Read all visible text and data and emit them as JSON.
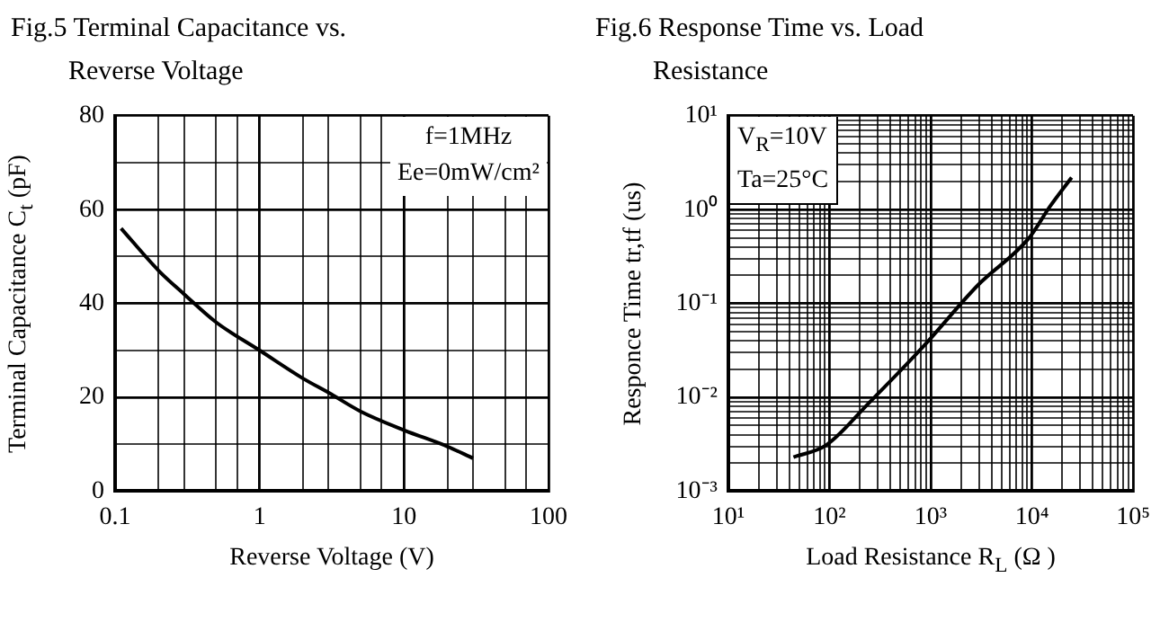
{
  "chart_data": [
    {
      "type": "line",
      "title": "Fig.5 Terminal Capacitance vs. Reverse Voltage",
      "xlabel": "Reverse Voltage (V)",
      "ylabel": "Terminal Capacitance C$_{t}$ (pF)",
      "annotations": [
        "f=1MHz",
        "Ee=0mW/cm²"
      ],
      "x": [
        0.11,
        0.2,
        0.3,
        0.5,
        1,
        2,
        3,
        5,
        10,
        20,
        30
      ],
      "series": [
        {
          "color": "#000000",
          "values": [
            56,
            47,
            42,
            36,
            30,
            24,
            21,
            17,
            13,
            9.5,
            7
          ]
        }
      ],
      "log": "x",
      "xlim": [
        0.1,
        100
      ],
      "xticks": [
        0.1,
        {
          "value": 0.2,
          "label": null
        },
        {
          "value": 0.3,
          "label": null
        },
        {
          "value": 0.5,
          "label": null
        },
        {
          "value": 0.7,
          "label": null
        },
        1,
        {
          "value": 2,
          "label": null
        },
        {
          "value": 3,
          "label": null
        },
        {
          "value": 5,
          "label": null
        },
        {
          "value": 7,
          "label": null
        },
        10,
        {
          "value": 20,
          "label": null
        },
        {
          "value": 30,
          "label": null
        },
        {
          "value": 50,
          "label": null
        },
        {
          "value": 70,
          "label": null
        },
        100
      ],
      "ylim": [
        0,
        80
      ],
      "yticks": [
        0,
        {
          "value": 10,
          "label": null
        },
        20,
        {
          "value": 30,
          "label": null
        },
        40,
        {
          "value": 50,
          "label": null
        },
        60,
        {
          "value": 70,
          "label": null
        },
        80
      ],
      "grid": true,
      "legend": false,
      "line_style": "solid"
    },
    {
      "type": "line",
      "title": "Fig.6 Response Time vs. Load Resistance",
      "xlabel": "Load Resistance R$_{L}$ (Ω )",
      "ylabel": "Responce Time tr,tf (us)",
      "annotations": [
        "V$_{R}$=10V",
        "Ta=25°C"
      ],
      "x": [
        44,
        93,
        245,
        850,
        2900,
        9400,
        15000,
        24700
      ],
      "series": [
        {
          "color": "#000000",
          "values": [
            0.0023,
            0.0031,
            0.0087,
            0.035,
            0.155,
            0.5,
            1.07,
            2.2
          ]
        }
      ],
      "log": "xy",
      "xlim": [
        10,
        100000
      ],
      "xticks": [
        {
          "value": 10,
          "label": "10¹"
        },
        {
          "value": 20,
          "label": null
        },
        {
          "value": 30,
          "label": null
        },
        {
          "value": 40,
          "label": null
        },
        {
          "value": 50,
          "label": null
        },
        {
          "value": 60,
          "label": null
        },
        {
          "value": 70,
          "label": null
        },
        {
          "value": 80,
          "label": null
        },
        {
          "value": 90,
          "label": null
        },
        {
          "value": 100,
          "label": "10²"
        },
        {
          "value": 200,
          "label": null
        },
        {
          "value": 300,
          "label": null
        },
        {
          "value": 400,
          "label": null
        },
        {
          "value": 500,
          "label": null
        },
        {
          "value": 600,
          "label": null
        },
        {
          "value": 700,
          "label": null
        },
        {
          "value": 800,
          "label": null
        },
        {
          "value": 900,
          "label": null
        },
        {
          "value": 1000,
          "label": "10³"
        },
        {
          "value": 2000,
          "label": null
        },
        {
          "value": 3000,
          "label": null
        },
        {
          "value": 4000,
          "label": null
        },
        {
          "value": 5000,
          "label": null
        },
        {
          "value": 6000,
          "label": null
        },
        {
          "value": 7000,
          "label": null
        },
        {
          "value": 8000,
          "label": null
        },
        {
          "value": 9000,
          "label": null
        },
        {
          "value": 10000,
          "label": "10⁴"
        },
        {
          "value": 20000,
          "label": null
        },
        {
          "value": 30000,
          "label": null
        },
        {
          "value": 40000,
          "label": null
        },
        {
          "value": 50000,
          "label": null
        },
        {
          "value": 60000,
          "label": null
        },
        {
          "value": 70000,
          "label": null
        },
        {
          "value": 80000,
          "label": null
        },
        {
          "value": 90000,
          "label": null
        },
        {
          "value": 100000,
          "label": "10⁵"
        }
      ],
      "ylim": [
        0.001,
        10
      ],
      "yticks": [
        {
          "value": 0.001,
          "label": "10⁻³"
        },
        {
          "value": 0.002,
          "label": null
        },
        {
          "value": 0.003,
          "label": null
        },
        {
          "value": 0.004,
          "label": null
        },
        {
          "value": 0.005,
          "label": null
        },
        {
          "value": 0.006,
          "label": null
        },
        {
          "value": 0.007,
          "label": null
        },
        {
          "value": 0.008,
          "label": null
        },
        {
          "value": 0.009,
          "label": null
        },
        {
          "value": 0.01,
          "label": "10⁻²"
        },
        {
          "value": 0.02,
          "label": null
        },
        {
          "value": 0.03,
          "label": null
        },
        {
          "value": 0.04,
          "label": null
        },
        {
          "value": 0.05,
          "label": null
        },
        {
          "value": 0.06,
          "label": null
        },
        {
          "value": 0.07,
          "label": null
        },
        {
          "value": 0.08,
          "label": null
        },
        {
          "value": 0.09,
          "label": null
        },
        {
          "value": 0.1,
          "label": "10⁻¹"
        },
        {
          "value": 0.2,
          "label": null
        },
        {
          "value": 0.3,
          "label": null
        },
        {
          "value": 0.4,
          "label": null
        },
        {
          "value": 0.5,
          "label": null
        },
        {
          "value": 0.6,
          "label": null
        },
        {
          "value": 0.7,
          "label": null
        },
        {
          "value": 0.8,
          "label": null
        },
        {
          "value": 0.9,
          "label": null
        },
        {
          "value": 1,
          "label": "10⁰"
        },
        {
          "value": 2,
          "label": null
        },
        {
          "value": 3,
          "label": null
        },
        {
          "value": 4,
          "label": null
        },
        {
          "value": 5,
          "label": null
        },
        {
          "value": 6,
          "label": null
        },
        {
          "value": 7,
          "label": null
        },
        {
          "value": 8,
          "label": null
        },
        {
          "value": 9,
          "label": null
        },
        {
          "value": 10,
          "label": "10¹"
        }
      ],
      "grid": true,
      "legend": false,
      "line_style": "solid"
    }
  ]
}
